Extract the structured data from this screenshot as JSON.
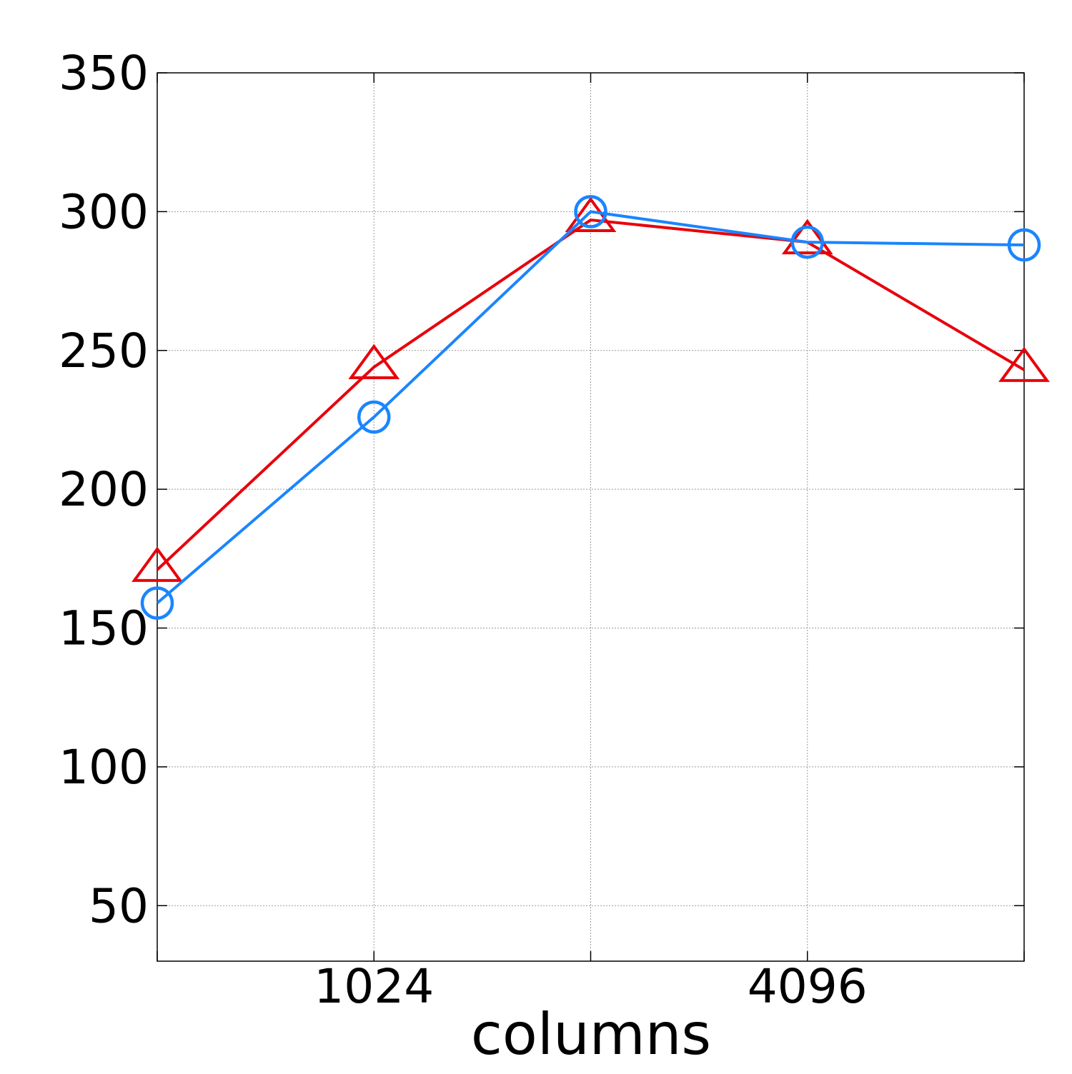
{
  "chart_data": {
    "type": "line",
    "title": "",
    "xlabel": "columns",
    "ylabel": "",
    "x": [
      512,
      1024,
      2048,
      4096,
      8192
    ],
    "x_scale": "log2",
    "xlim": [
      512,
      8192
    ],
    "x_ticks": [
      1024,
      4096
    ],
    "x_tick_labels": [
      "1024",
      "4096"
    ],
    "ylim": [
      30,
      350
    ],
    "y_ticks": [
      50,
      100,
      150,
      200,
      250,
      300,
      350
    ],
    "y_tick_labels": [
      "50",
      "100",
      "150",
      "200",
      "250",
      "300",
      "350"
    ],
    "grid": true,
    "legend": "none",
    "series": [
      {
        "color": "#e8000b",
        "marker": "triangle",
        "values": [
          171,
          244,
          297,
          289,
          243
        ]
      },
      {
        "color": "#1a85ff",
        "marker": "circle",
        "values": [
          159,
          226,
          300,
          289,
          288
        ]
      }
    ]
  }
}
